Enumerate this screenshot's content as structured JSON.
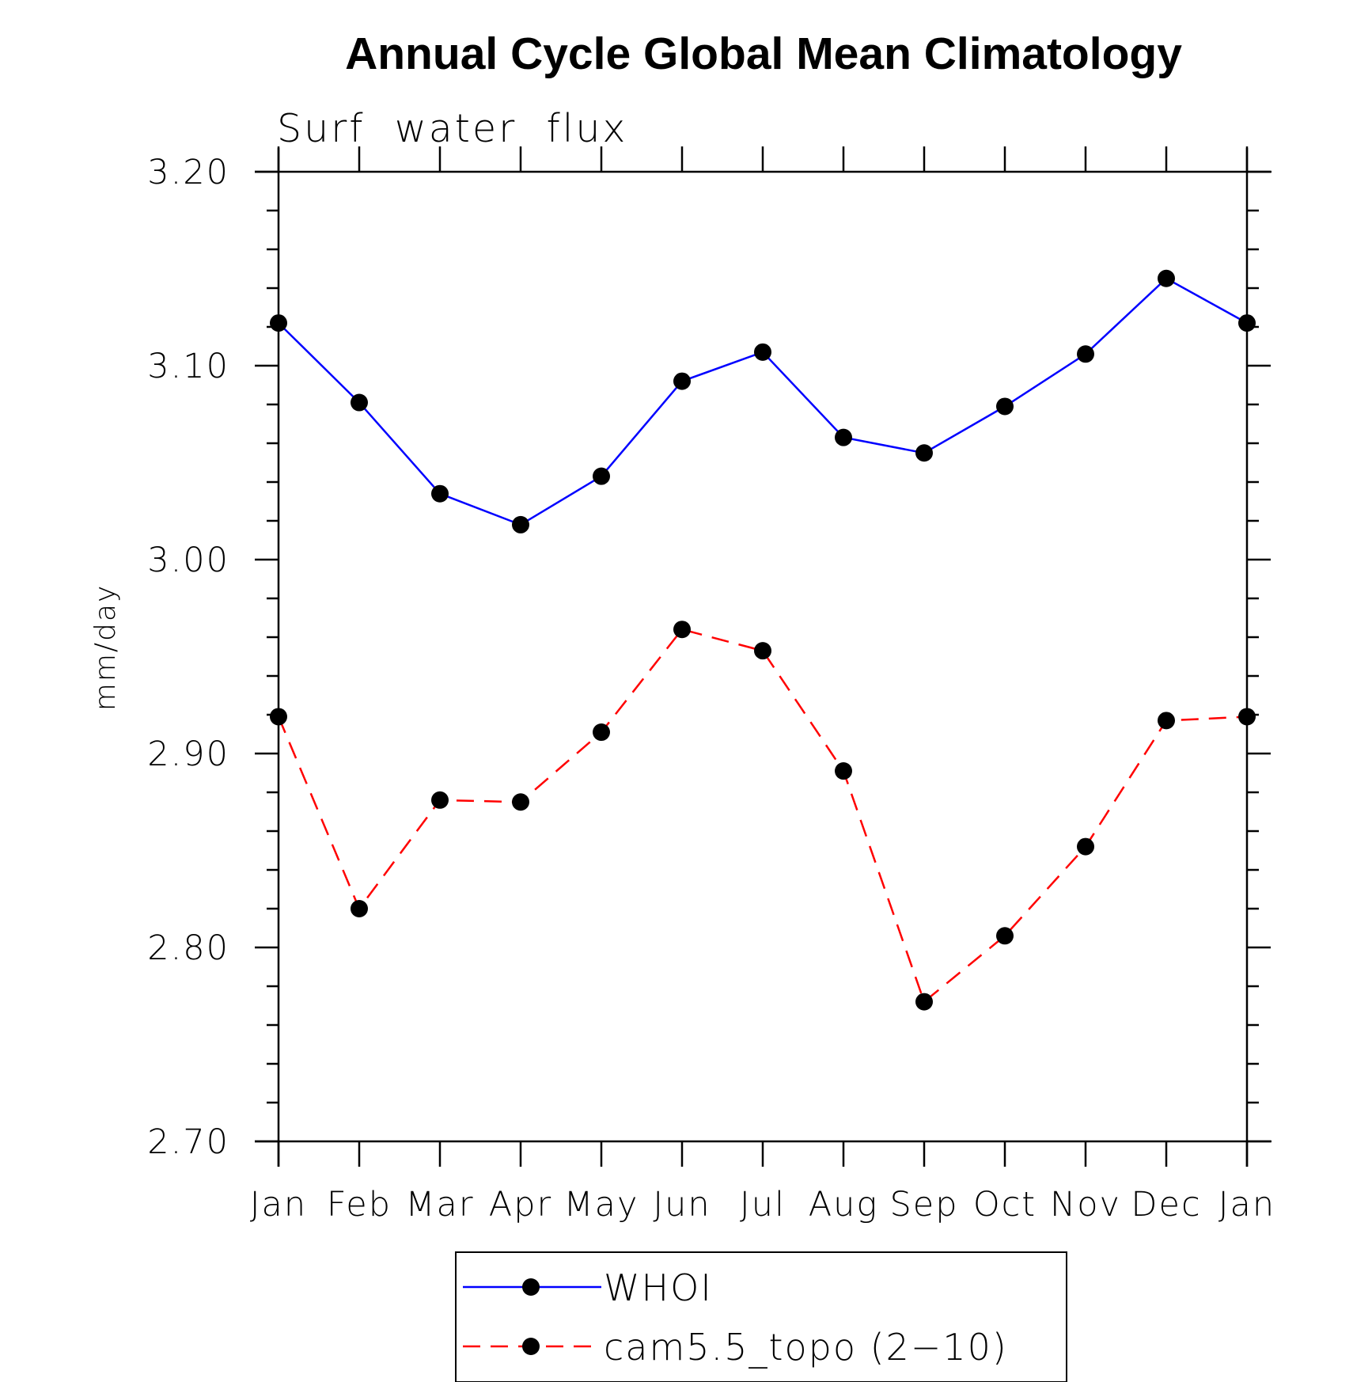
{
  "chart_data": {
    "type": "line",
    "title": "Annual Cycle Global Mean Climatology",
    "subtitle": "Surf  water  flux",
    "xlabel": "",
    "ylabel": "mm/day",
    "categories": [
      "Jan",
      "Feb",
      "Mar",
      "Apr",
      "May",
      "Jun",
      "Jul",
      "Aug",
      "Sep",
      "Oct",
      "Nov",
      "Dec",
      "Jan"
    ],
    "ylim": [
      2.7,
      3.2
    ],
    "yticks": [
      "2.70",
      "2.80",
      "2.90",
      "3.00",
      "3.10",
      "3.20"
    ],
    "yticks_values": [
      2.7,
      2.8,
      2.9,
      3.0,
      3.1,
      3.2
    ],
    "grid": false,
    "legend_position": "bottom",
    "series": [
      {
        "name": "WHOI",
        "color": "#0000ff",
        "dash": "solid",
        "marker": "filled-circle",
        "values": [
          3.122,
          3.081,
          3.034,
          3.018,
          3.043,
          3.092,
          3.107,
          3.063,
          3.055,
          3.079,
          3.106,
          3.145,
          3.122
        ]
      },
      {
        "name": "cam5.5_topo (2−10)",
        "color": "#ff0000",
        "dash": "dashed",
        "marker": "filled-circle",
        "values": [
          2.919,
          2.82,
          2.876,
          2.875,
          2.911,
          2.964,
          2.953,
          2.891,
          2.772,
          2.806,
          2.852,
          2.917,
          2.919
        ]
      }
    ]
  }
}
